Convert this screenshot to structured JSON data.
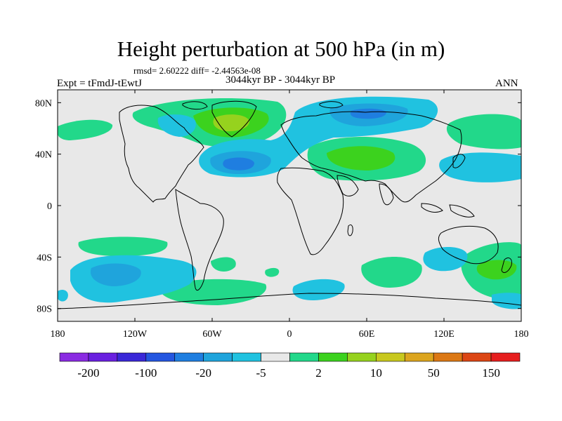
{
  "title": "Height perturbation at 500 hPa (in m)",
  "stats_line": "rmsd= 2.60222 diff= -2.44563e-08",
  "period": "3044kyr BP - 3044kyr BP",
  "experiment": "Expt = tFmdJ-tEwtJ",
  "season": "ANN",
  "map": {
    "background_color": "#e8e8e8",
    "x_ticks": [
      "180",
      "120W",
      "60W",
      "0",
      "60E",
      "120E",
      "180"
    ],
    "y_ticks": [
      "80N",
      "40N",
      "0",
      "40S",
      "80S"
    ]
  },
  "colorbar": {
    "colors": [
      "#8a2be2",
      "#6a20e0",
      "#3a28d8",
      "#2456e0",
      "#1f7ee0",
      "#1fa4dc",
      "#20c2e0",
      "#e8e8e8",
      "#22d88a",
      "#3cd21e",
      "#96d21e",
      "#c8c81e",
      "#dca51e",
      "#dc7814",
      "#dc4614",
      "#e61e1e"
    ],
    "labels": [
      "-200",
      "-100",
      "-20",
      "-5",
      "2",
      "10",
      "50",
      "150"
    ]
  },
  "anomaly_regions": [
    {
      "level": "positive-light",
      "color": "#22d88a"
    },
    {
      "level": "positive-mid",
      "color": "#3cd21e"
    },
    {
      "level": "positive-high",
      "color": "#96d21e"
    },
    {
      "level": "negative-light",
      "color": "#20c2e0"
    },
    {
      "level": "negative-mid",
      "color": "#1fa4dc"
    },
    {
      "level": "negative-high",
      "color": "#1f7ee0"
    }
  ]
}
